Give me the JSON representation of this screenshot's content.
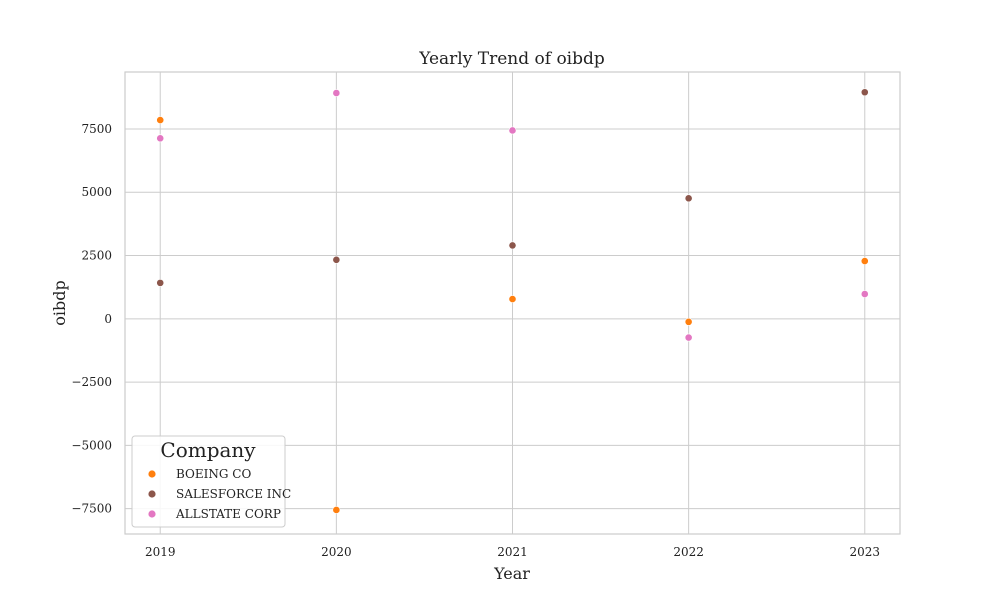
{
  "chart_data": {
    "type": "scatter",
    "title": "Yearly Trend of oibdp",
    "xlabel": "Year",
    "ylabel": "oibdp",
    "x": [
      2019,
      2020,
      2021,
      2022,
      2023
    ],
    "x_tick_labels": [
      "2019",
      "2020",
      "2021",
      "2022",
      "2023"
    ],
    "y_ticks": [
      -7500,
      -5000,
      -2500,
      0,
      2500,
      5000,
      7500
    ],
    "y_tick_labels": [
      "−7500",
      "−5000",
      "−2500",
      "0",
      "2500",
      "5000",
      "7500"
    ],
    "xlim": [
      2018.8,
      2023.2
    ],
    "ylim": [
      -8500,
      9750
    ],
    "grid": true,
    "legend": {
      "title": "Company",
      "placement": "lower-left"
    },
    "series": [
      {
        "name": "BOEING CO",
        "color": "#ff7f0e",
        "values": [
          7850,
          -7550,
          780,
          -120,
          2280
        ]
      },
      {
        "name": "SALESFORCE INC",
        "color": "#8c564b",
        "values": [
          1420,
          2330,
          2900,
          4760,
          8950
        ]
      },
      {
        "name": "ALLSTATE CORP",
        "color": "#e377c2",
        "values": [
          7130,
          8920,
          7440,
          -740,
          980
        ]
      }
    ]
  }
}
